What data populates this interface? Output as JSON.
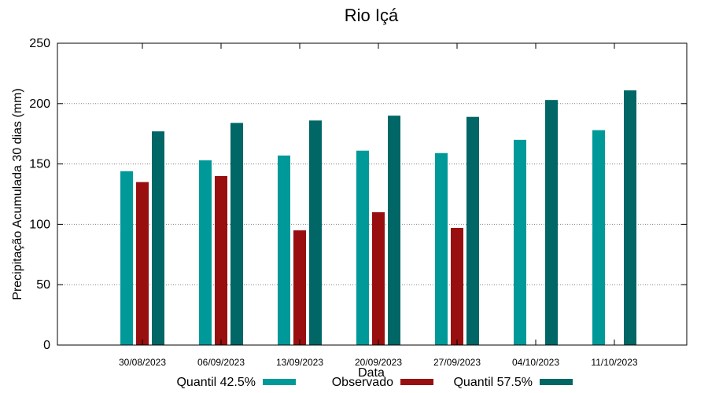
{
  "chart_data": {
    "type": "bar",
    "title": "Rio Içá",
    "xlabel": "Data",
    "ylabel": "Precipitação Acumulada 30 dias (mm)",
    "ylim": [
      0,
      250
    ],
    "yticks": [
      "0",
      "50",
      "100",
      "150",
      "200",
      "250"
    ],
    "grid": true,
    "legend_position": "bottom",
    "categories": [
      "30/08/2023",
      "06/09/2023",
      "13/09/2023",
      "20/09/2023",
      "27/09/2023",
      "04/10/2023",
      "11/10/2023"
    ],
    "series": [
      {
        "name": "Quantil 42.5%",
        "color": "#009999",
        "values": [
          144,
          153,
          157,
          161,
          159,
          170,
          178
        ]
      },
      {
        "name": "Observado",
        "color": "#990f0f",
        "values": [
          135,
          140,
          95,
          110,
          97,
          null,
          null
        ]
      },
      {
        "name": "Quantil 57.5%",
        "color": "#006666",
        "values": [
          177,
          184,
          186,
          190,
          189,
          203,
          211
        ]
      }
    ]
  }
}
